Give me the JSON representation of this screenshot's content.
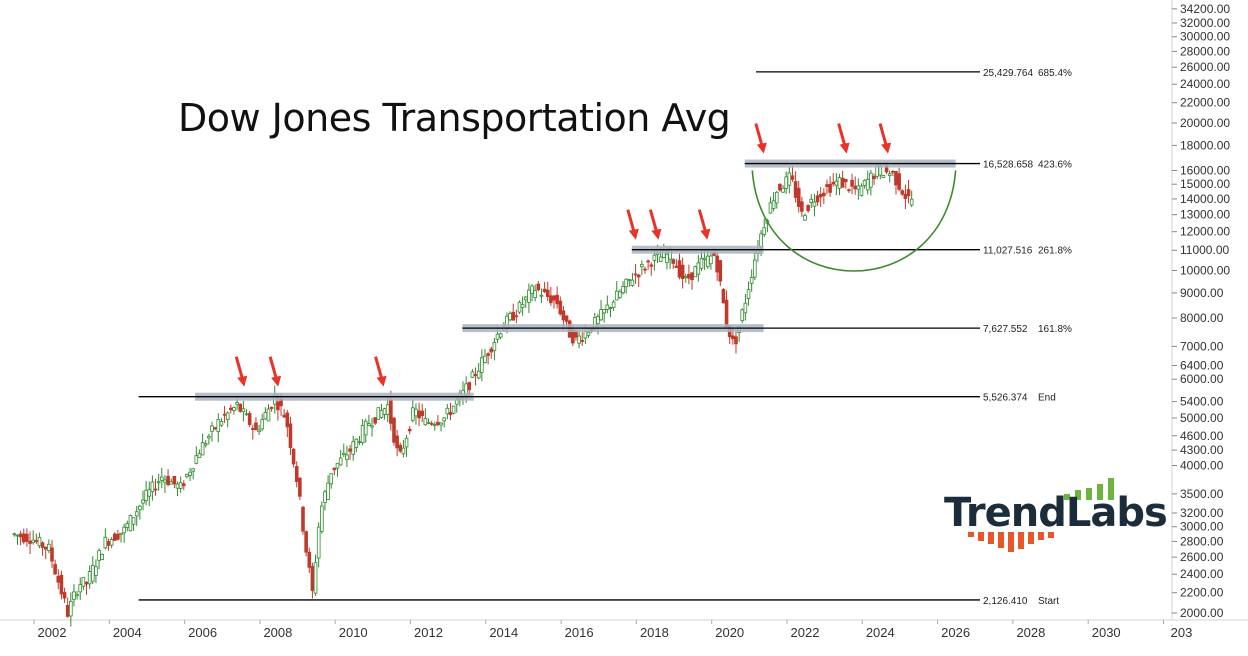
{
  "title": "Dow Jones Transportation Avg",
  "brand": {
    "name": "TrendLabs",
    "accent_up": "#6cb33f",
    "accent_down": "#e8562a",
    "text_color": "#1b2c3a"
  },
  "colors": {
    "up_candle": "#2e8b2e",
    "down_candle": "#c0392b",
    "zone": "#a9b3c1",
    "arrow": "#e8322a",
    "arc": "#3d8b2e",
    "level_line": "#000000"
  },
  "chart_data": {
    "type": "line",
    "title": "Dow Jones Transportation Avg",
    "scale": "log",
    "ylim": [
      2000,
      34200
    ],
    "xlim": [
      2001.0,
      2033.0
    ],
    "x_ticks": [
      "2002",
      "2004",
      "2006",
      "2008",
      "2010",
      "2012",
      "2014",
      "2016",
      "2018",
      "2020",
      "2022",
      "2024",
      "2026",
      "2028",
      "2030",
      "203"
    ],
    "y_ticks": [
      "34200.00",
      "32000.00",
      "30000.00",
      "28000.00",
      "26000.00",
      "24000.00",
      "22000.00",
      "20000.00",
      "18000.00",
      "16000.00",
      "15000.00",
      "14000.00",
      "13000.00",
      "12000.00",
      "11000.00",
      "10000.00",
      "9000.00",
      "8000.00",
      "7000.00",
      "6400.00",
      "6000.00",
      "5400.00",
      "5000.00",
      "4600.00",
      "4300.00",
      "4000.00",
      "3500.00",
      "3200.00",
      "3000.00",
      "2800.00",
      "2600.00",
      "2400.00",
      "2200.00",
      "2000.00"
    ],
    "series": [
      {
        "x": [
          2001.0,
          2001.5,
          2002.0,
          2002.5,
          2002.8,
          2003.0,
          2003.5,
          2004.0,
          2004.5,
          2005.0,
          2005.5,
          2006.0,
          2006.5,
          2007.0,
          2007.5,
          2008.0,
          2008.3,
          2008.6,
          2008.8,
          2009.0,
          2009.2,
          2009.5,
          2010.0,
          2010.5,
          2011.0,
          2011.3,
          2011.7,
          2012.0,
          2012.5,
          2013.0,
          2013.5,
          2014.0,
          2014.5,
          2014.9,
          2015.5,
          2015.8,
          2016.0,
          2016.5,
          2017.0,
          2017.5,
          2018.0,
          2018.5,
          2018.9,
          2019.3,
          2019.7,
          2020.0,
          2020.2,
          2020.5,
          2020.8,
          2021.0,
          2021.3,
          2021.7,
          2022.0,
          2022.3,
          2022.7,
          2023.0,
          2023.5,
          2024.0,
          2024.4,
          2024.8
        ]
      }
    ],
    "levels": [
      {
        "label": "2,126.410",
        "tag": "Start",
        "value": 2126.41
      },
      {
        "label": "5,526.374",
        "tag": "End",
        "value": 5526.374
      },
      {
        "label": "7,627.552",
        "tag": "161.8%",
        "value": 7627.552
      },
      {
        "label": "11,027.516",
        "tag": "261.8%",
        "value": 11027.516
      },
      {
        "label": "16,528.658",
        "tag": "423.6%",
        "value": 16528.658
      },
      {
        "label": "25,429.764",
        "tag": "685.4%",
        "value": 25429.764
      }
    ],
    "zones": [
      {
        "value": 5526.374,
        "x0": 2005.8,
        "x1": 2013.2
      },
      {
        "value": 7627.552,
        "x0": 2012.9,
        "x1": 2020.9
      },
      {
        "value": 11027.516,
        "x0": 2017.4,
        "x1": 2020.9
      },
      {
        "value": 16528.658,
        "x0": 2020.4,
        "x1": 2026.0
      }
    ],
    "arrows_x": [
      2007.0,
      2007.9,
      2010.7,
      2017.4,
      2018.0,
      2019.3,
      2020.8,
      2023.0,
      2024.1
    ]
  }
}
